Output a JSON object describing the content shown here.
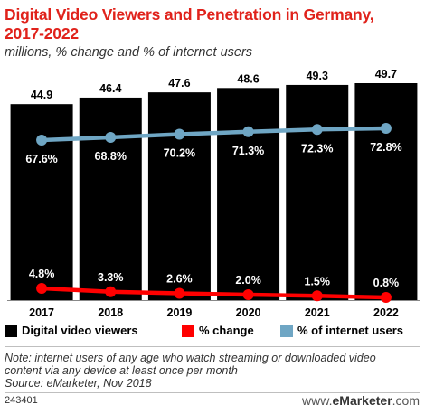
{
  "title_line1": "Digital Video Viewers and Penetration in Germany,",
  "title_line2": "2017-2022",
  "subtitle": "millions, % change and % of internet users",
  "colors": {
    "title": "#e0221b",
    "bars": "#000000",
    "change_line": "#ff0000",
    "internet_line": "#6fa6c4"
  },
  "chart_data": {
    "type": "bar",
    "categories": [
      "2017",
      "2018",
      "2019",
      "2020",
      "2021",
      "2022"
    ],
    "series": [
      {
        "name": "Digital video viewers",
        "type": "bar",
        "values": [
          44.9,
          46.4,
          47.6,
          48.6,
          49.3,
          49.7
        ],
        "labels": [
          "44.9",
          "46.4",
          "47.6",
          "48.6",
          "49.3",
          "49.7"
        ]
      },
      {
        "name": "% change",
        "type": "line",
        "values": [
          4.8,
          3.3,
          2.6,
          2.0,
          1.5,
          0.8
        ],
        "labels": [
          "4.8%",
          "3.3%",
          "2.6%",
          "2.0%",
          "1.5%",
          "0.8%"
        ]
      },
      {
        "name": "% of internet users",
        "type": "line",
        "values": [
          67.6,
          68.8,
          70.2,
          71.3,
          72.3,
          72.8
        ],
        "labels": [
          "67.6%",
          "68.8%",
          "70.2%",
          "71.3%",
          "72.3%",
          "72.8%"
        ]
      }
    ]
  },
  "legend": {
    "bars": "Digital video viewers",
    "change": "% change",
    "internet": "% of internet users"
  },
  "note_line1": "Note: internet users of any age who watch streaming or downloaded video",
  "note_line2": "content via any device at least once per month",
  "source": "Source: eMarketer, Nov 2018",
  "chart_id": "243401",
  "logo": {
    "prefix": "www.",
    "brand": "eMarketer",
    "suffix": ".com"
  }
}
